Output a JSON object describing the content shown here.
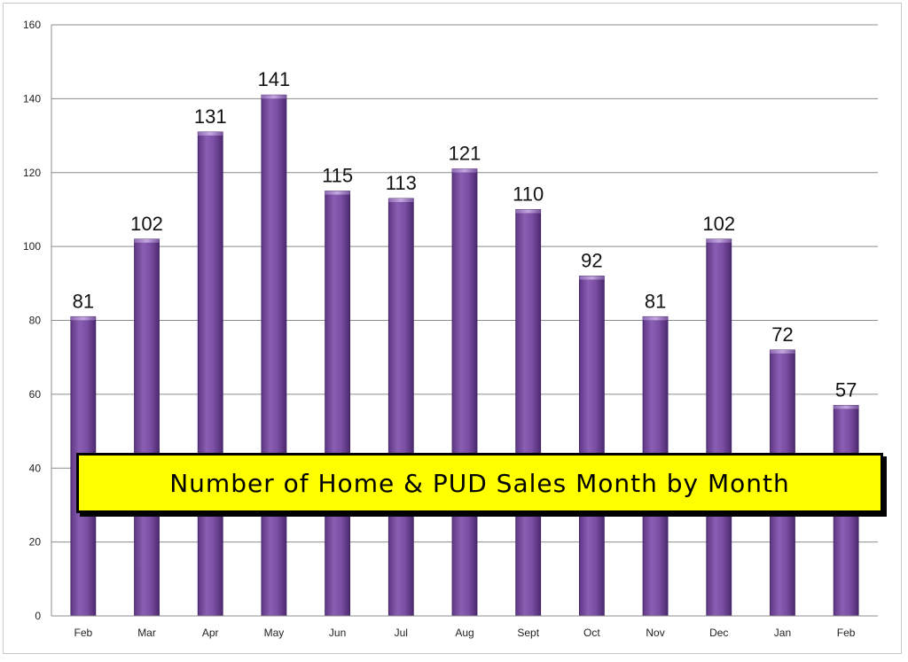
{
  "chart_data": {
    "type": "bar",
    "title": "Number of Home & PUD Sales Month by Month",
    "xlabel": "",
    "ylabel": "",
    "categories": [
      "Feb",
      "Mar",
      "Apr",
      "May",
      "Jun",
      "Jul",
      "Aug",
      "Sept",
      "Oct",
      "Nov",
      "Dec",
      "Jan",
      "Feb"
    ],
    "values": [
      81,
      102,
      131,
      141,
      115,
      113,
      121,
      110,
      92,
      81,
      102,
      72,
      57
    ],
    "ylim": [
      0,
      160
    ],
    "yticks": [
      0,
      20,
      40,
      60,
      80,
      100,
      120,
      140,
      160
    ],
    "grid": true,
    "data_labels": true,
    "bar_color": "#7b4fa0",
    "title_background": "#ffff00"
  }
}
